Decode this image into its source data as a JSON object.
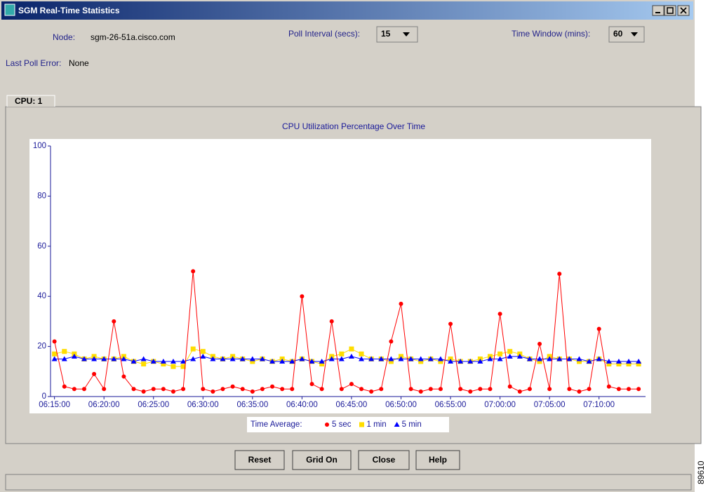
{
  "window": {
    "title": "SGM Real-Time Statistics"
  },
  "node_label": "Node:",
  "node": "sgm-26-51a.cisco.com",
  "poll_interval_label": "Poll Interval (secs):",
  "poll_interval": "15",
  "time_window_label": "Time Window (mins):",
  "time_window": "60",
  "last_poll_error_label": "Last Poll Error:",
  "last_poll_error": "None",
  "tab": "CPU: 1",
  "buttons": [
    "Reset",
    "Grid On",
    "Close",
    "Help"
  ],
  "figure_id": "89610",
  "chart_data": {
    "type": "line",
    "title": "CPU Utilization Percentage Over Time",
    "legend_title": "Time Average:",
    "x": [
      15,
      16,
      17,
      18,
      19,
      20,
      21,
      22,
      23,
      24,
      25,
      26,
      27,
      28,
      29,
      30,
      31,
      32,
      33,
      34,
      35,
      36,
      37,
      38,
      39,
      40,
      41,
      42,
      43,
      44,
      45,
      46,
      47,
      48,
      49,
      50,
      51,
      52,
      53,
      54,
      55,
      56,
      57,
      58,
      59,
      60,
      61,
      62,
      63,
      64,
      65,
      66,
      67,
      68,
      69,
      70,
      71,
      72,
      73,
      74
    ],
    "series": [
      {
        "name": "5 sec",
        "color": "#ff0000",
        "marker": "circle",
        "values": [
          22,
          4,
          3,
          3,
          9,
          3,
          30,
          8,
          3,
          2,
          3,
          3,
          2,
          3,
          50,
          3,
          2,
          3,
          4,
          3,
          2,
          3,
          4,
          3,
          3,
          40,
          5,
          3,
          30,
          3,
          5,
          3,
          2,
          3,
          22,
          37,
          3,
          2,
          3,
          3,
          29,
          3,
          2,
          3,
          3,
          33,
          4,
          2,
          3,
          21,
          3,
          49,
          3,
          2,
          3,
          27,
          4,
          3,
          3,
          3
        ]
      },
      {
        "name": "1 min",
        "color": "#ffdd00",
        "marker": "square",
        "values": [
          17,
          18,
          17,
          15,
          16,
          15,
          15,
          16,
          14,
          13,
          14,
          13,
          12,
          12,
          19,
          18,
          16,
          15,
          16,
          15,
          14,
          15,
          14,
          15,
          14,
          15,
          14,
          13,
          16,
          17,
          19,
          17,
          15,
          15,
          14,
          16,
          15,
          14,
          15,
          14,
          15,
          14,
          14,
          15,
          16,
          17,
          18,
          17,
          15,
          14,
          16,
          15,
          15,
          14,
          14,
          15,
          13,
          13,
          13,
          13
        ]
      },
      {
        "name": "5 min",
        "color": "#0000ff",
        "marker": "triangle",
        "values": [
          15,
          15,
          16,
          15,
          15,
          15,
          15,
          15,
          14,
          15,
          14,
          14,
          14,
          14,
          15,
          16,
          15,
          15,
          15,
          15,
          15,
          15,
          14,
          14,
          14,
          15,
          14,
          14,
          15,
          15,
          16,
          15,
          15,
          15,
          15,
          15,
          15,
          15,
          15,
          15,
          14,
          14,
          14,
          14,
          15,
          15,
          16,
          16,
          15,
          15,
          15,
          15,
          15,
          15,
          14,
          15,
          14,
          14,
          14,
          14
        ]
      }
    ],
    "xlim": [
      14.6,
      74.7
    ],
    "xticks": [
      {
        "value": 15,
        "label": "06:15:00"
      },
      {
        "value": 20,
        "label": "06:20:00"
      },
      {
        "value": 25,
        "label": "06:25:00"
      },
      {
        "value": 30,
        "label": "06:30:00"
      },
      {
        "value": 35,
        "label": "06:35:00"
      },
      {
        "value": 40,
        "label": "06:40:00"
      },
      {
        "value": 45,
        "label": "06:45:00"
      },
      {
        "value": 50,
        "label": "06:50:00"
      },
      {
        "value": 55,
        "label": "06:55:00"
      },
      {
        "value": 60,
        "label": "07:00:00"
      },
      {
        "value": 65,
        "label": "07:05:00"
      },
      {
        "value": 70,
        "label": "07:10:00"
      }
    ],
    "ylim": [
      0,
      100
    ],
    "yticks": [
      0,
      20,
      40,
      60,
      80,
      100
    ],
    "grid": false,
    "legend": "bottom"
  }
}
